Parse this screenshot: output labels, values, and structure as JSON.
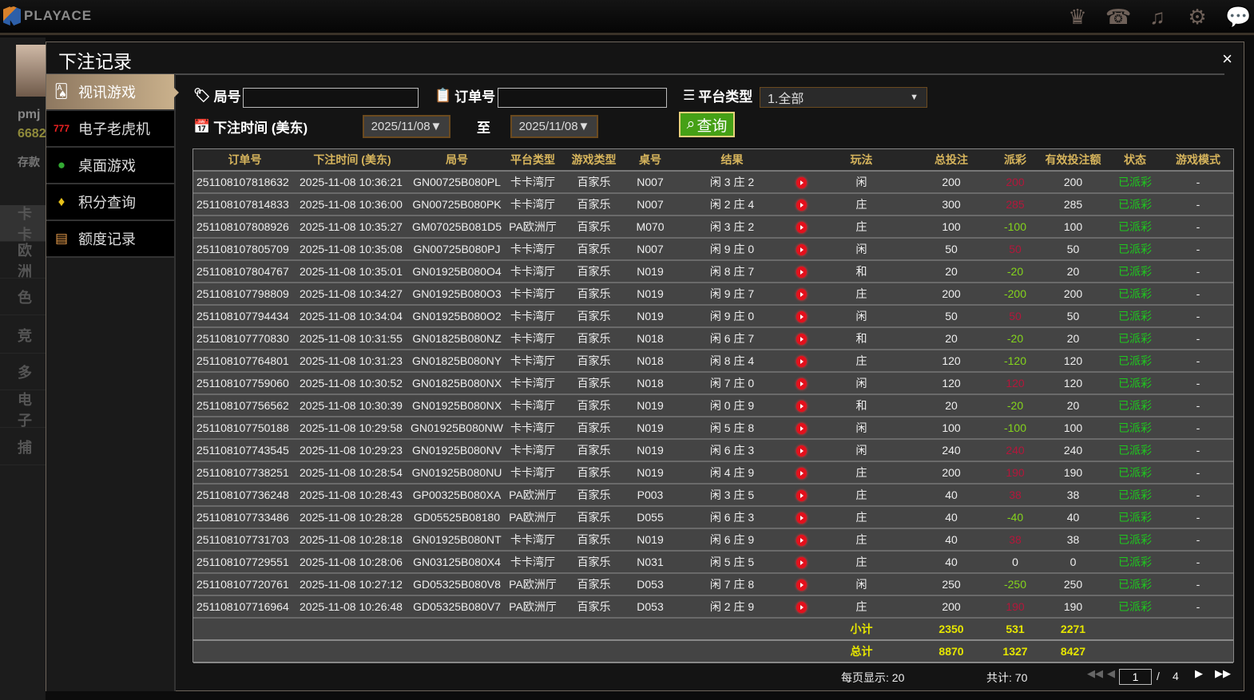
{
  "app": {
    "logo": "PLAYACE",
    "top_icons": [
      "vip-icon",
      "customer-service-icon",
      "music-icon",
      "gear-icon",
      "chat-icon"
    ]
  },
  "background": {
    "user": "pmj",
    "balance": "6682",
    "deposit": "存款",
    "items": [
      "卡卡",
      "欧洲",
      "色",
      "竞",
      "多",
      "电子",
      "捕"
    ]
  },
  "modal": {
    "title": "下注记录",
    "close": "×"
  },
  "sidebar": [
    {
      "label": "视讯游戏",
      "icon": "cards-icon",
      "active": true
    },
    {
      "label": "电子老虎机",
      "icon": "slot-777-icon"
    },
    {
      "label": "桌面游戏",
      "icon": "chips-icon"
    },
    {
      "label": "积分查询",
      "icon": "diamond-icon"
    },
    {
      "label": "额度记录",
      "icon": "document-icon"
    }
  ],
  "filters": {
    "round_label": "局号",
    "round_value": "",
    "order_label": "订单号",
    "order_value": "",
    "platform_label": "平台类型",
    "platform_value": "1.全部",
    "time_label": "下注时间 (美东)",
    "date_from": "2025/11/08▼",
    "to": "至",
    "date_to": "2025/11/08▼",
    "query": "查询"
  },
  "table": {
    "headers": [
      "订单号",
      "下注时间 (美东)",
      "局号",
      "平台类型",
      "游戏类型",
      "桌号",
      "结果",
      "",
      "玩法",
      "总投注",
      "派彩",
      "有效投注额",
      "状态",
      "游戏模式"
    ],
    "rows": [
      [
        "251108107818632",
        "2025-11-08 10:36:21",
        "GN00725B080PL",
        "卡卡湾厅",
        "百家乐",
        "N007",
        "闲 3 庄 2",
        "闲",
        "200",
        "200",
        "200",
        "已派彩",
        "-"
      ],
      [
        "251108107814833",
        "2025-11-08 10:36:00",
        "GN00725B080PK",
        "卡卡湾厅",
        "百家乐",
        "N007",
        "闲 2 庄 4",
        "庄",
        "300",
        "285",
        "285",
        "已派彩",
        "-"
      ],
      [
        "251108107808926",
        "2025-11-08 10:35:27",
        "GM07025B081D5",
        "PA欧洲厅",
        "百家乐",
        "M070",
        "闲 3 庄 2",
        "庄",
        "100",
        "-100",
        "100",
        "已派彩",
        "-"
      ],
      [
        "251108107805709",
        "2025-11-08 10:35:08",
        "GN00725B080PJ",
        "卡卡湾厅",
        "百家乐",
        "N007",
        "闲 9 庄 0",
        "闲",
        "50",
        "50",
        "50",
        "已派彩",
        "-"
      ],
      [
        "251108107804767",
        "2025-11-08 10:35:01",
        "GN01925B080O4",
        "卡卡湾厅",
        "百家乐",
        "N019",
        "闲 8 庄 7",
        "和",
        "20",
        "-20",
        "20",
        "已派彩",
        "-"
      ],
      [
        "251108107798809",
        "2025-11-08 10:34:27",
        "GN01925B080O3",
        "卡卡湾厅",
        "百家乐",
        "N019",
        "闲 9 庄 7",
        "庄",
        "200",
        "-200",
        "200",
        "已派彩",
        "-"
      ],
      [
        "251108107794434",
        "2025-11-08 10:34:04",
        "GN01925B080O2",
        "卡卡湾厅",
        "百家乐",
        "N019",
        "闲 9 庄 0",
        "闲",
        "50",
        "50",
        "50",
        "已派彩",
        "-"
      ],
      [
        "251108107770830",
        "2025-11-08 10:31:55",
        "GN01825B080NZ",
        "卡卡湾厅",
        "百家乐",
        "N018",
        "闲 6 庄 7",
        "和",
        "20",
        "-20",
        "20",
        "已派彩",
        "-"
      ],
      [
        "251108107764801",
        "2025-11-08 10:31:23",
        "GN01825B080NY",
        "卡卡湾厅",
        "百家乐",
        "N018",
        "闲 8 庄 4",
        "庄",
        "120",
        "-120",
        "120",
        "已派彩",
        "-"
      ],
      [
        "251108107759060",
        "2025-11-08 10:30:52",
        "GN01825B080NX",
        "卡卡湾厅",
        "百家乐",
        "N018",
        "闲 7 庄 0",
        "闲",
        "120",
        "120",
        "120",
        "已派彩",
        "-"
      ],
      [
        "251108107756562",
        "2025-11-08 10:30:39",
        "GN01925B080NX",
        "卡卡湾厅",
        "百家乐",
        "N019",
        "闲 0 庄 9",
        "和",
        "20",
        "-20",
        "20",
        "已派彩",
        "-"
      ],
      [
        "251108107750188",
        "2025-11-08 10:29:58",
        "GN01925B080NW",
        "卡卡湾厅",
        "百家乐",
        "N019",
        "闲 5 庄 8",
        "闲",
        "100",
        "-100",
        "100",
        "已派彩",
        "-"
      ],
      [
        "251108107743545",
        "2025-11-08 10:29:23",
        "GN01925B080NV",
        "卡卡湾厅",
        "百家乐",
        "N019",
        "闲 6 庄 3",
        "闲",
        "240",
        "240",
        "240",
        "已派彩",
        "-"
      ],
      [
        "251108107738251",
        "2025-11-08 10:28:54",
        "GN01925B080NU",
        "卡卡湾厅",
        "百家乐",
        "N019",
        "闲 4 庄 9",
        "庄",
        "200",
        "190",
        "190",
        "已派彩",
        "-"
      ],
      [
        "251108107736248",
        "2025-11-08 10:28:43",
        "GP00325B080XA",
        "PA欧洲厅",
        "百家乐",
        "P003",
        "闲 3 庄 5",
        "庄",
        "40",
        "38",
        "38",
        "已派彩",
        "-"
      ],
      [
        "251108107733486",
        "2025-11-08 10:28:28",
        "GD05525B08180",
        "PA欧洲厅",
        "百家乐",
        "D055",
        "闲 6 庄 3",
        "庄",
        "40",
        "-40",
        "40",
        "已派彩",
        "-"
      ],
      [
        "251108107731703",
        "2025-11-08 10:28:18",
        "GN01925B080NT",
        "卡卡湾厅",
        "百家乐",
        "N019",
        "闲 6 庄 9",
        "庄",
        "40",
        "38",
        "38",
        "已派彩",
        "-"
      ],
      [
        "251108107729551",
        "2025-11-08 10:28:06",
        "GN03125B080X4",
        "卡卡湾厅",
        "百家乐",
        "N031",
        "闲 5 庄 5",
        "庄",
        "40",
        "0",
        "0",
        "已派彩",
        "-"
      ],
      [
        "251108107720761",
        "2025-11-08 10:27:12",
        "GD05325B080V8",
        "PA欧洲厅",
        "百家乐",
        "D053",
        "闲 7 庄 8",
        "闲",
        "250",
        "-250",
        "250",
        "已派彩",
        "-"
      ],
      [
        "251108107716964",
        "2025-11-08 10:26:48",
        "GD05325B080V7",
        "PA欧洲厅",
        "百家乐",
        "D053",
        "闲 2 庄 9",
        "庄",
        "200",
        "190",
        "190",
        "已派彩",
        "-"
      ]
    ],
    "subtotal": {
      "label": "小计",
      "bet": "2350",
      "payout": "531",
      "valid": "2271"
    },
    "total": {
      "label": "总计",
      "bet": "8870",
      "payout": "1327",
      "valid": "8427"
    }
  },
  "pagination": {
    "per_page": "每页显示: 20",
    "total": "共计: 70",
    "current": "1",
    "separator": "/",
    "pages": "4"
  },
  "colors": {
    "win": "#b3173b",
    "loss": "#84d41c",
    "status": "#1ec81e",
    "header": "#d6b45c",
    "summary": "#e6e600"
  }
}
